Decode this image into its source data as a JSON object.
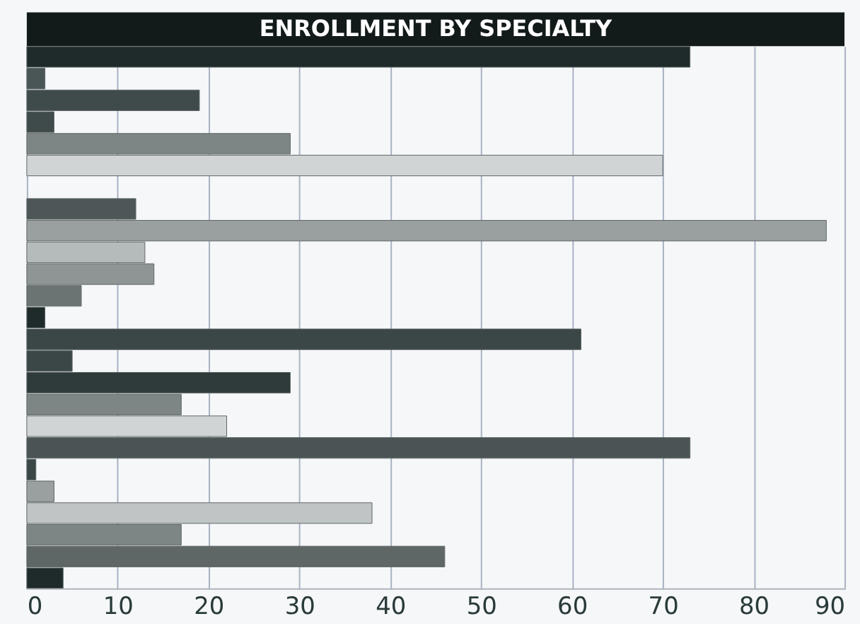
{
  "chart_data": {
    "type": "bar",
    "orientation": "horizontal",
    "title": "ENROLLMENT BY SPECIALTY",
    "categories": [
      null,
      null,
      null,
      null,
      null,
      null,
      null,
      null,
      null,
      null,
      null,
      null,
      null,
      null,
      null,
      null,
      null,
      null,
      null,
      null,
      null,
      null,
      null,
      null,
      null
    ],
    "values": [
      73,
      2,
      19,
      3,
      29,
      70,
      null,
      12,
      88,
      13,
      14,
      6,
      2,
      61,
      5,
      29,
      17,
      22,
      73,
      1,
      3,
      38,
      17,
      46,
      4
    ],
    "colors": [
      "#1f2b2b",
      "#4a5555",
      "#3f4a4a",
      "#3f4a4a",
      "#7d8585",
      "#d0d4d4",
      null,
      "#4d5757",
      "#9aa0a0",
      "#b5baba",
      "#8f9595",
      "#6b7373",
      "#1f2b2b",
      "#3b4646",
      "#3b4646",
      "#2f3a3a",
      "#7d8585",
      "#d0d4d4",
      "#4a5454",
      "#3b4646",
      "#9aa0a0",
      "#c0c4c4",
      "#7d8585",
      "#5e6666",
      "#1f2b2b"
    ],
    "xlim": [
      0,
      90
    ],
    "xticks": [
      0,
      10,
      20,
      30,
      40,
      50,
      60,
      70,
      80,
      90
    ],
    "grid": "x",
    "tick_labels": "x"
  }
}
